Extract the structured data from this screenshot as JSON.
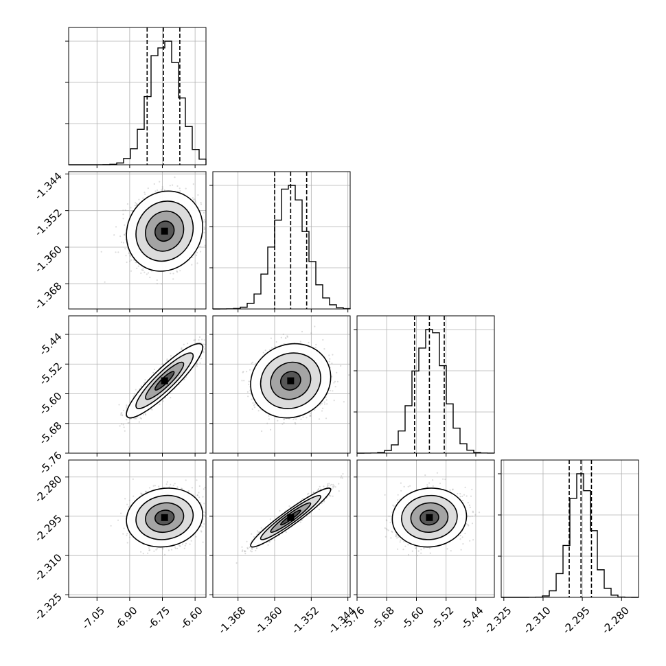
{
  "chart_data": {
    "type": "corner",
    "grid": true,
    "colors": {
      "line": "#000000",
      "grid": "#b0b0b0",
      "points": "#9a9a9a",
      "frame": "#000000"
    },
    "parameters": [
      {
        "range": [
          -7.18,
          -6.55
        ],
        "ticks": [
          "-7.05",
          "-6.90",
          "-6.75",
          "-6.60"
        ],
        "tick_values": [
          -7.05,
          -6.9,
          -6.75,
          -6.6
        ],
        "mean": -6.74,
        "sd": 0.07,
        "quantiles": [
          -6.82,
          -6.745,
          -6.67
        ]
      },
      {
        "range": [
          -1.3735,
          -1.3435
        ],
        "ticks": [
          "-1.368",
          "-1.360",
          "-1.352",
          "-1.344"
        ],
        "tick_values": [
          -1.368,
          -1.36,
          -1.352,
          -1.344
        ],
        "mean": -1.3565,
        "sd": 0.0035,
        "quantiles": [
          -1.36,
          -1.3565,
          -1.353
        ]
      },
      {
        "range": [
          -5.76,
          -5.39
        ],
        "ticks": [
          "-5.76",
          "-5.68",
          "-5.60",
          "-5.52",
          "-5.44"
        ],
        "tick_values": [
          -5.76,
          -5.68,
          -5.6,
          -5.52,
          -5.44
        ],
        "mean": -5.565,
        "sd": 0.04,
        "quantiles": [
          -5.605,
          -5.565,
          -5.525
        ]
      },
      {
        "range": [
          -2.326,
          -2.2735
        ],
        "ticks": [
          "-2.325",
          "-2.310",
          "-2.295",
          "-2.280"
        ],
        "tick_values": [
          -2.325,
          -2.31,
          -2.295,
          -2.28
        ],
        "mean": -2.2955,
        "sd": 0.0045,
        "quantiles": [
          -2.3,
          -2.2955,
          -2.2915
        ]
      }
    ],
    "correlations": [
      [
        1,
        0.1,
        0.9,
        0.1
      ],
      [
        0.1,
        1,
        0.1,
        0.95
      ],
      [
        0.9,
        0.1,
        1,
        0.05
      ],
      [
        0.1,
        0.95,
        0.05,
        1
      ]
    ],
    "histogram_bins": 20,
    "contour_levels_sigma": [
      0.5,
      1.0,
      1.5,
      2.0
    ]
  }
}
